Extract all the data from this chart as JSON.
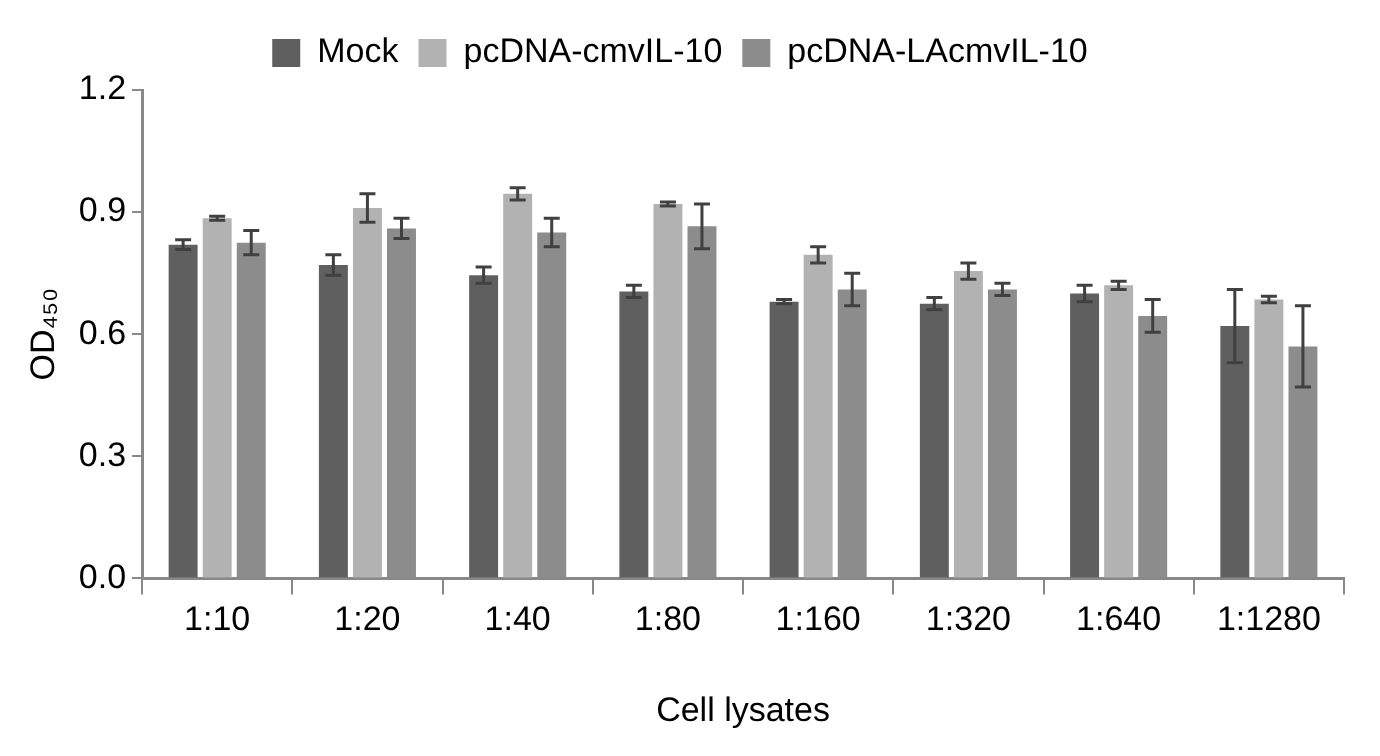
{
  "chart_data": {
    "type": "bar",
    "xlabel": "Cell lysates",
    "ylabel": "OD₄₅₀",
    "categories": [
      "1:10",
      "1:20",
      "1:40",
      "1:80",
      "1:160",
      "1:320",
      "1:640",
      "1:1280"
    ],
    "series": [
      {
        "name": "Mock",
        "color": "#5f5f5f",
        "values": [
          0.82,
          0.77,
          0.745,
          0.705,
          0.68,
          0.675,
          0.7,
          0.62
        ],
        "errors": [
          0.012,
          0.025,
          0.02,
          0.015,
          0.005,
          0.015,
          0.02,
          0.09
        ]
      },
      {
        "name": "pcDNA-cmvIL-10",
        "color": "#b2b2b2",
        "values": [
          0.885,
          0.91,
          0.945,
          0.92,
          0.795,
          0.755,
          0.72,
          0.685
        ],
        "errors": [
          0.005,
          0.035,
          0.015,
          0.005,
          0.02,
          0.02,
          0.01,
          0.008
        ]
      },
      {
        "name": "pcDNA-LAcmvIL-10",
        "color": "#8c8c8c",
        "values": [
          0.825,
          0.86,
          0.85,
          0.865,
          0.71,
          0.71,
          0.645,
          0.57
        ],
        "errors": [
          0.03,
          0.025,
          0.035,
          0.055,
          0.04,
          0.015,
          0.04,
          0.1
        ]
      }
    ],
    "ylim": [
      0,
      1.2
    ],
    "yticks": [
      {
        "value": 0,
        "label": "0.0"
      },
      {
        "value": 0.3,
        "label": "0.3"
      },
      {
        "value": 0.6,
        "label": "0.6"
      },
      {
        "value": 0.9,
        "label": "0.9"
      },
      {
        "value": 1.2,
        "label": "1.2"
      }
    ],
    "grid": false,
    "legend": "top"
  }
}
